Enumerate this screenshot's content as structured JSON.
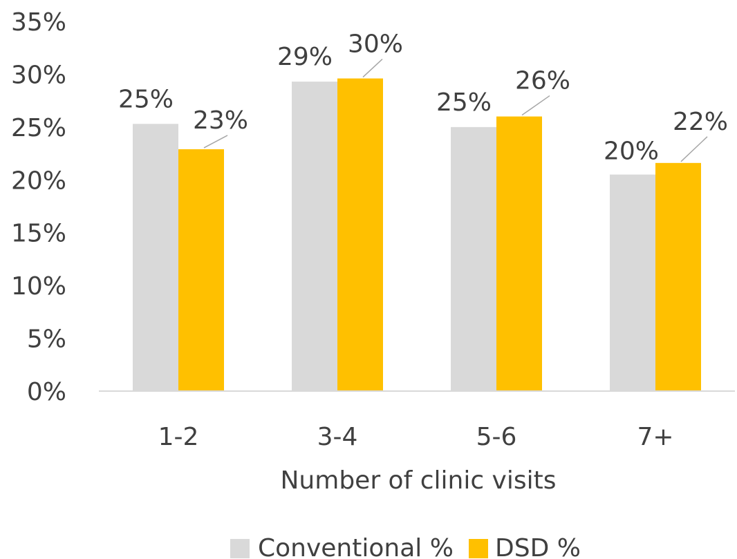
{
  "chart_data": {
    "type": "bar",
    "categories": [
      "1-2",
      "3-4",
      "5-6",
      "7+"
    ],
    "series": [
      {
        "name": "Conventional %",
        "color": "#d9d9d9",
        "values": [
          25.3,
          29.3,
          25.0,
          20.5
        ]
      },
      {
        "name": "DSD %",
        "color": "#ffc000",
        "values": [
          22.9,
          29.6,
          26.0,
          21.6
        ]
      }
    ],
    "data_labels": [
      [
        "25%",
        "29%",
        "25%",
        "20%"
      ],
      [
        "23%",
        "30%",
        "26%",
        "22%"
      ]
    ],
    "yticks": [
      "0%",
      "5%",
      "10%",
      "15%",
      "20%",
      "25%",
      "30%",
      "35%"
    ],
    "ylim": [
      0,
      35
    ],
    "xlabel": "Number of clinic visits",
    "ylabel": "",
    "title": "",
    "grid": false,
    "legend_position": "bottom"
  }
}
